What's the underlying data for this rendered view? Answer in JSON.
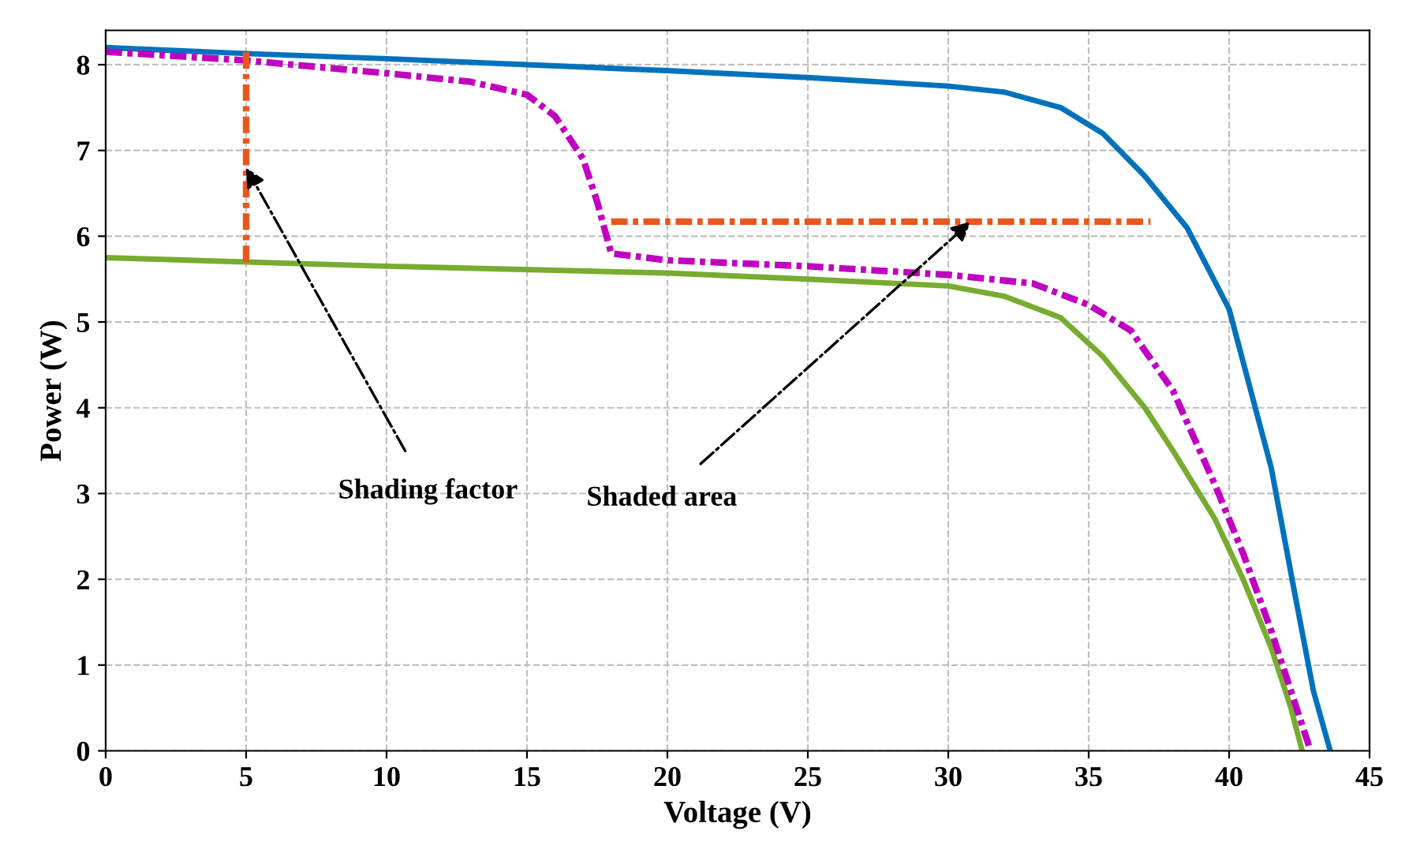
{
  "chart_data": {
    "type": "line",
    "xlabel": "Voltage (V)",
    "ylabel": "Power (W)",
    "xlim": [
      0,
      45
    ],
    "ylim": [
      0,
      8.4
    ],
    "xticks": [
      0,
      5,
      10,
      15,
      20,
      25,
      30,
      35,
      40,
      45
    ],
    "yticks": [
      0,
      1,
      2,
      3,
      4,
      5,
      6,
      7,
      8
    ],
    "grid": true,
    "line_style": "solid",
    "marker": "none",
    "series": [
      {
        "color": "#0072bd",
        "x": [
          0,
          5,
          10,
          15,
          20,
          25,
          30,
          32,
          34,
          35.5,
          37,
          38.5,
          40,
          41.5,
          42.3,
          43,
          43.6
        ],
        "values": [
          8.2,
          8.13,
          8.07,
          8.0,
          7.93,
          7.85,
          7.75,
          7.68,
          7.5,
          7.2,
          6.7,
          6.1,
          5.15,
          3.3,
          1.9,
          0.7,
          0
        ]
      },
      {
        "color": "#77ac30",
        "x": [
          0,
          10,
          20,
          25,
          30,
          32,
          34,
          35.5,
          37,
          38,
          39.5,
          40.5,
          41.5,
          42.2,
          42.6
        ],
        "values": [
          5.75,
          5.65,
          5.57,
          5.5,
          5.42,
          5.3,
          5.05,
          4.6,
          4.0,
          3.5,
          2.7,
          2.0,
          1.2,
          0.5,
          0
        ]
      },
      {
        "color": "#c000c0",
        "line_style": "dashdot",
        "x": [
          0,
          5,
          10,
          13,
          15,
          16,
          17,
          17.5,
          18,
          20,
          25,
          30,
          33,
          35,
          36.5,
          38,
          39.5,
          40.5,
          41.5,
          42.5,
          42.9
        ],
        "values": [
          8.15,
          8.05,
          7.9,
          7.8,
          7.65,
          7.4,
          6.9,
          6.4,
          5.8,
          5.72,
          5.65,
          5.55,
          5.45,
          5.2,
          4.9,
          4.2,
          3.1,
          2.3,
          1.4,
          0.4,
          0
        ]
      },
      {
        "color": "#e8561e",
        "line_style": "dashdot",
        "x": [
          5,
          5
        ],
        "values": [
          5.7,
          8.15
        ]
      },
      {
        "color": "#e8561e",
        "line_style": "dashdot",
        "x": [
          18,
          37.2
        ],
        "values": [
          6.17,
          6.17
        ]
      }
    ],
    "annotations": [
      {
        "text": "Shading factor",
        "x": 5,
        "y": 6.8
      },
      {
        "text": "Shaded area",
        "x": 30.8,
        "y": 6.17
      }
    ]
  }
}
